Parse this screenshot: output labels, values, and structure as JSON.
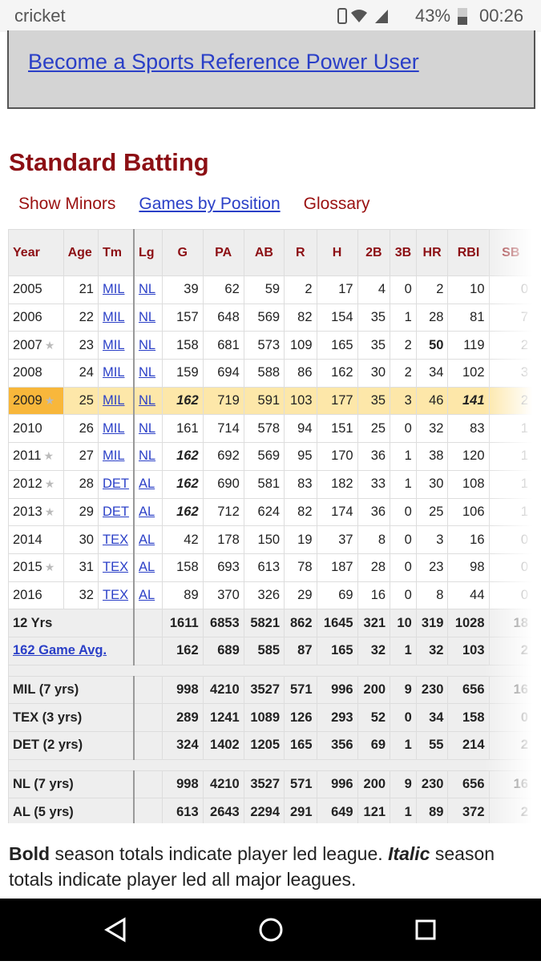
{
  "status_bar": {
    "carrier": "cricket",
    "battery": "43%",
    "time": "00:26"
  },
  "banner": {
    "link": "Become a Sports Reference Power User"
  },
  "section": {
    "title": "Standard Batting",
    "links": [
      {
        "text": "Show Minors",
        "style": "red"
      },
      {
        "text": "Games by Position",
        "style": "link"
      },
      {
        "text": "Glossary",
        "style": "red"
      }
    ]
  },
  "table": {
    "header": [
      "Year",
      "Age",
      "Tm",
      "Lg",
      "G",
      "PA",
      "AB",
      "R",
      "H",
      "2B",
      "3B",
      "HR",
      "RBI",
      "SB"
    ],
    "rows": [
      {
        "cells": [
          "2005",
          "21",
          "MIL",
          "NL",
          "39",
          "62",
          "59",
          "2",
          "17",
          "4",
          "0",
          "2",
          "10",
          "0"
        ]
      },
      {
        "cells": [
          "2006",
          "22",
          "MIL",
          "NL",
          "157",
          "648",
          "569",
          "82",
          "154",
          "35",
          "1",
          "28",
          "81",
          "7"
        ]
      },
      {
        "cells": [
          "2007",
          "23",
          "MIL",
          "NL",
          "158",
          "681",
          "573",
          "109",
          "165",
          "35",
          "2",
          "50",
          "119",
          "2"
        ],
        "star": true,
        "bold": [
          11
        ]
      },
      {
        "cells": [
          "2008",
          "24",
          "MIL",
          "NL",
          "159",
          "694",
          "588",
          "86",
          "162",
          "30",
          "2",
          "34",
          "102",
          "3"
        ]
      },
      {
        "cells": [
          "2009",
          "25",
          "MIL",
          "NL",
          "162",
          "719",
          "591",
          "103",
          "177",
          "35",
          "3",
          "46",
          "141",
          "2"
        ],
        "star": true,
        "highlight": true,
        "bold_italic": [
          4,
          12
        ]
      },
      {
        "cells": [
          "2010",
          "26",
          "MIL",
          "NL",
          "161",
          "714",
          "578",
          "94",
          "151",
          "25",
          "0",
          "32",
          "83",
          "1"
        ]
      },
      {
        "cells": [
          "2011",
          "27",
          "MIL",
          "NL",
          "162",
          "692",
          "569",
          "95",
          "170",
          "36",
          "1",
          "38",
          "120",
          "1"
        ],
        "star": true,
        "bold_italic": [
          4
        ]
      },
      {
        "cells": [
          "2012",
          "28",
          "DET",
          "AL",
          "162",
          "690",
          "581",
          "83",
          "182",
          "33",
          "1",
          "30",
          "108",
          "1"
        ],
        "star": true,
        "bold_italic": [
          4
        ]
      },
      {
        "cells": [
          "2013",
          "29",
          "DET",
          "AL",
          "162",
          "712",
          "624",
          "82",
          "174",
          "36",
          "0",
          "25",
          "106",
          "1"
        ],
        "star": true,
        "bold_italic": [
          4
        ]
      },
      {
        "cells": [
          "2014",
          "30",
          "TEX",
          "AL",
          "42",
          "178",
          "150",
          "19",
          "37",
          "8",
          "0",
          "3",
          "16",
          "0"
        ]
      },
      {
        "cells": [
          "2015",
          "31",
          "TEX",
          "AL",
          "158",
          "693",
          "613",
          "78",
          "187",
          "28",
          "0",
          "23",
          "98",
          "0"
        ],
        "star": true
      },
      {
        "cells": [
          "2016",
          "32",
          "TEX",
          "AL",
          "89",
          "370",
          "326",
          "29",
          "69",
          "16",
          "0",
          "8",
          "44",
          "0"
        ]
      }
    ],
    "summary_groups": [
      [
        {
          "label": "12 Yrs",
          "cells": [
            "1611",
            "6853",
            "5821",
            "862",
            "1645",
            "321",
            "10",
            "319",
            "1028",
            "18"
          ]
        },
        {
          "label": "162 Game Avg.",
          "link": true,
          "cells": [
            "162",
            "689",
            "585",
            "87",
            "165",
            "32",
            "1",
            "32",
            "103",
            "2"
          ]
        }
      ],
      [
        {
          "label": "MIL (7 yrs)",
          "cells": [
            "998",
            "4210",
            "3527",
            "571",
            "996",
            "200",
            "9",
            "230",
            "656",
            "16"
          ]
        },
        {
          "label": "TEX (3 yrs)",
          "cells": [
            "289",
            "1241",
            "1089",
            "126",
            "293",
            "52",
            "0",
            "34",
            "158",
            "0"
          ]
        },
        {
          "label": "DET (2 yrs)",
          "cells": [
            "324",
            "1402",
            "1205",
            "165",
            "356",
            "69",
            "1",
            "55",
            "214",
            "2"
          ]
        }
      ],
      [
        {
          "label": "NL (7 yrs)",
          "cells": [
            "998",
            "4210",
            "3527",
            "571",
            "996",
            "200",
            "9",
            "230",
            "656",
            "16"
          ]
        },
        {
          "label": "AL (5 yrs)",
          "cells": [
            "613",
            "2643",
            "2294",
            "291",
            "649",
            "121",
            "1",
            "89",
            "372",
            "2"
          ]
        }
      ]
    ]
  },
  "footnote": [
    "Bold",
    " season totals indicate player led league. ",
    "Italic",
    " season totals indicate player led all major leagues."
  ]
}
